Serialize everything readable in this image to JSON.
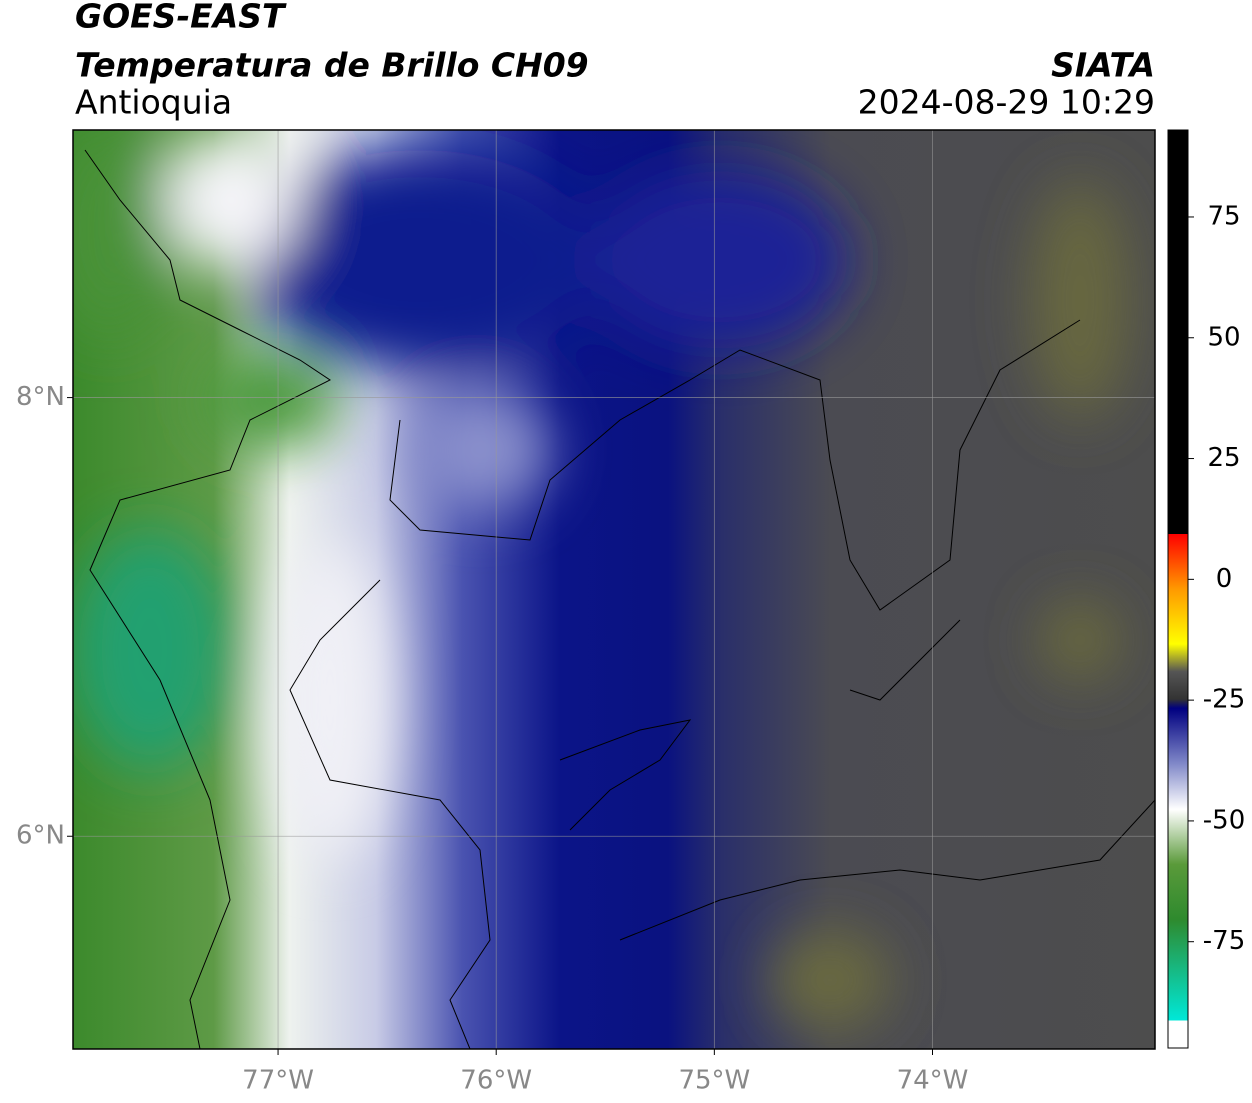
{
  "header": {
    "title": "GOES-EAST",
    "subtitle": "Temperatura de Brillo CH09",
    "region": "Antioquia",
    "source": "SIATA",
    "timestamp": "2024-08-29 10:29"
  },
  "map": {
    "xlim": [
      -77.94,
      -72.98
    ],
    "ylim": [
      5.03,
      9.22
    ],
    "xticks": [
      {
        "value": -77,
        "label": "77°W"
      },
      {
        "value": -76,
        "label": "76°W"
      },
      {
        "value": -75,
        "label": "75°W"
      },
      {
        "value": -74,
        "label": "74°W"
      }
    ],
    "yticks": [
      {
        "value": 8,
        "label": "8°N"
      },
      {
        "value": 6,
        "label": "6°N"
      }
    ],
    "grid": true
  },
  "colorbar": {
    "lim": [
      -97,
      93
    ],
    "ticks": [
      75,
      50,
      25,
      0,
      -25,
      -50,
      -75
    ]
  }
}
